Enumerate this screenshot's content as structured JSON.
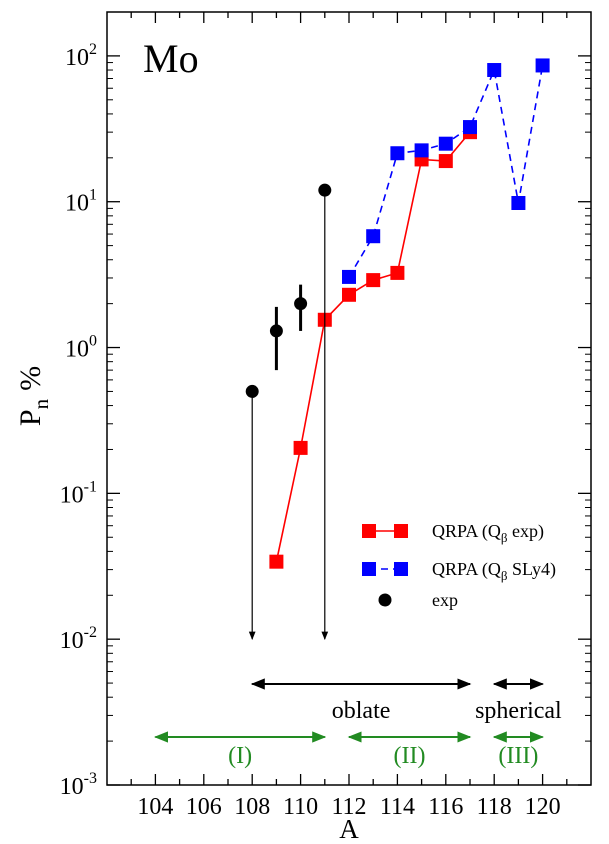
{
  "chart_data": {
    "type": "scatter",
    "element_label": "Mo",
    "xlabel": "A",
    "ylabel_main": "P",
    "ylabel_sub": "n",
    "ylabel_unit": "%",
    "xlim": [
      102,
      122
    ],
    "ylim": [
      0.001,
      200
    ],
    "yscale": "log",
    "grid": false,
    "legend_placement": "bottom-right",
    "x_ticks": [
      104,
      106,
      108,
      110,
      112,
      114,
      116,
      118,
      120
    ],
    "y_ticks": [
      {
        "value": 0.001,
        "base": "10",
        "exp": "-3"
      },
      {
        "value": 0.01,
        "base": "10",
        "exp": "-2"
      },
      {
        "value": 0.1,
        "base": "10",
        "exp": "-1"
      },
      {
        "value": 1,
        "base": "10",
        "exp": "0"
      },
      {
        "value": 10,
        "base": "10",
        "exp": "1"
      },
      {
        "value": 100,
        "base": "10",
        "exp": "2"
      }
    ],
    "series": [
      {
        "legend_main": "QRPA (Q",
        "legend_sub": "β",
        "legend_tail": " exp)",
        "color": "#ff0000",
        "marker": "square",
        "line": "solid",
        "x": [
          109,
          110,
          111,
          112,
          113,
          114,
          115,
          116,
          117
        ],
        "y": [
          0.034,
          0.205,
          1.55,
          2.3,
          2.9,
          3.25,
          19.5,
          19.0,
          30.0
        ]
      },
      {
        "legend_main": "QRPA (Q",
        "legend_sub": "β",
        "legend_tail": " SLy4)",
        "color": "#0000ff",
        "marker": "square",
        "line": "dashed",
        "x": [
          112,
          113,
          114,
          115,
          116,
          117,
          118,
          119,
          120
        ],
        "y": [
          3.05,
          5.8,
          21.5,
          22.5,
          25.0,
          32.5,
          80.0,
          9.8,
          86.0
        ]
      },
      {
        "legend_main": "exp",
        "color": "#000000",
        "marker": "circle",
        "line": "none",
        "x": [
          108,
          109,
          110,
          111
        ],
        "y": [
          0.5,
          1.3,
          2.0,
          12.0
        ],
        "err_low": [
          0.01,
          0.7,
          1.3,
          0.01
        ],
        "err_high": [
          0.5,
          1.9,
          2.7,
          12.0
        ],
        "arrow_down": [
          true,
          false,
          false,
          true
        ]
      }
    ],
    "annotations": [
      {
        "text": "oblate",
        "x_from": 108,
        "x_to": 117,
        "color": "#000000"
      },
      {
        "text": "spherical",
        "x_from": 118,
        "x_to": 120,
        "color": "#000000"
      },
      {
        "text": "(I)",
        "x_from": 104,
        "x_to": 111,
        "color": "#228b22"
      },
      {
        "text": "(II)",
        "x_from": 112,
        "x_to": 117,
        "color": "#228b22"
      },
      {
        "text": "(III)",
        "x_from": 118,
        "x_to": 120,
        "color": "#228b22"
      }
    ]
  }
}
